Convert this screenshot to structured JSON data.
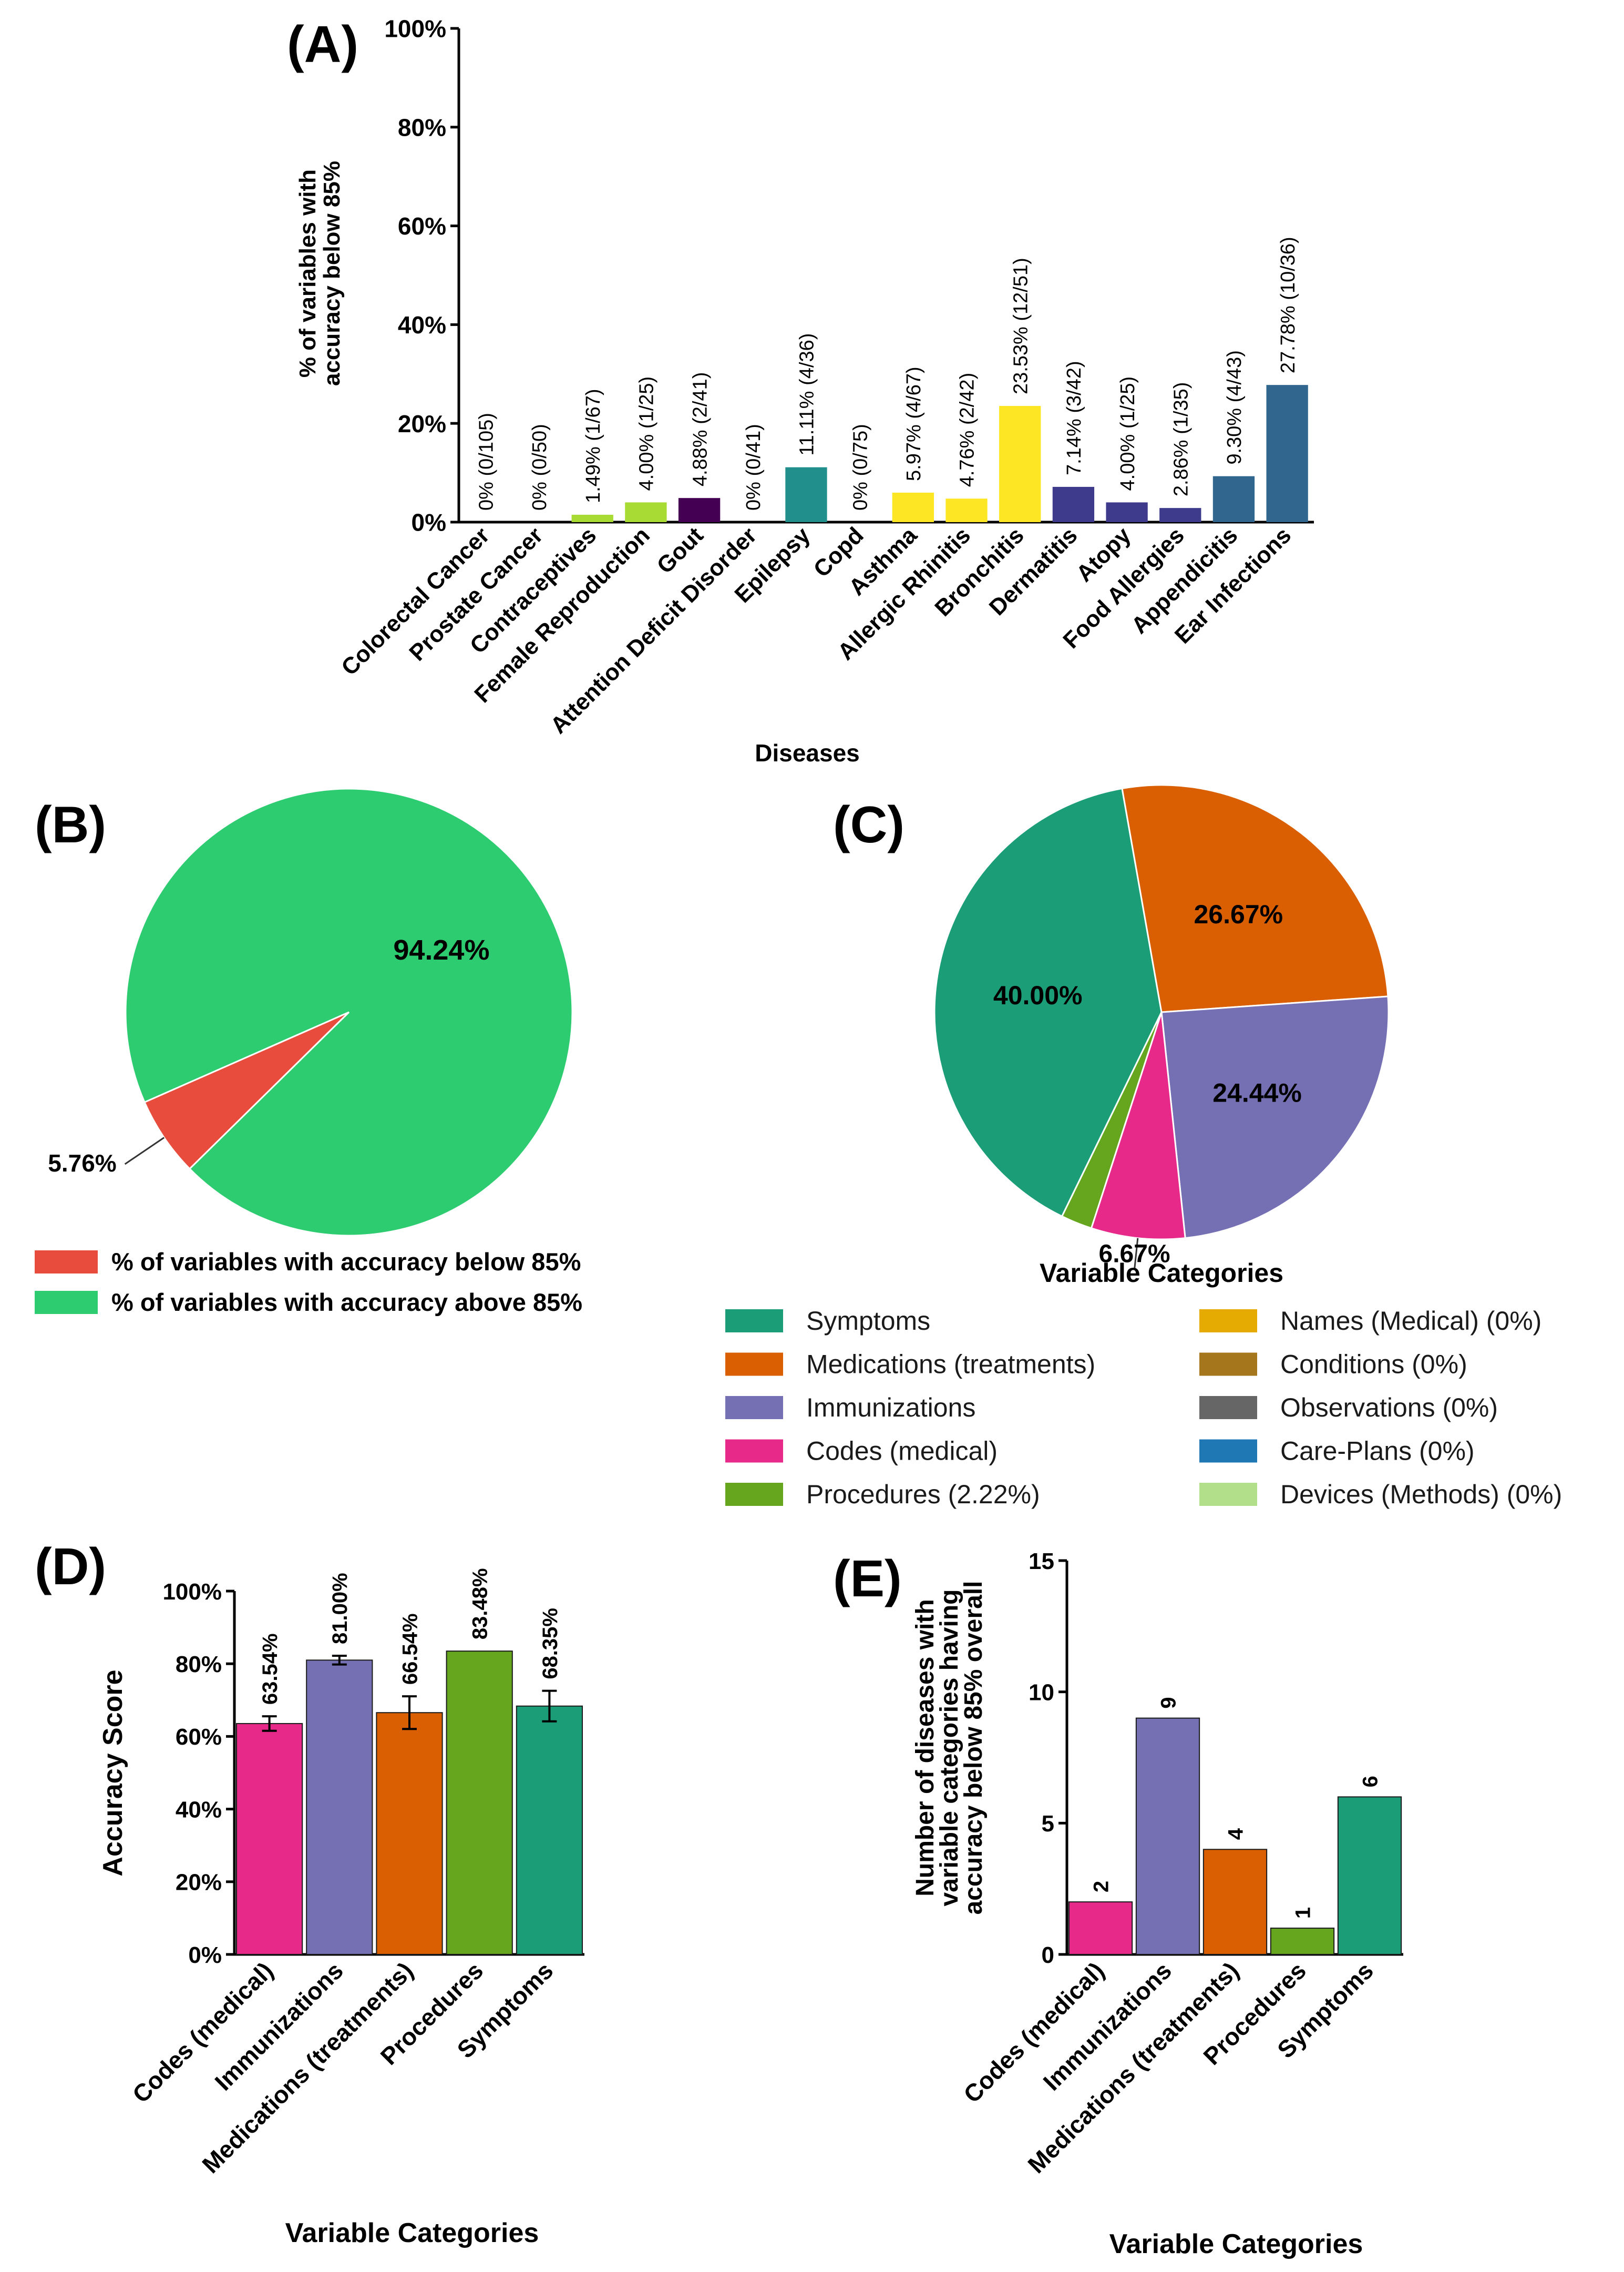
{
  "chart_data": [
    {
      "panel": "(A)",
      "type": "bar",
      "xlabel": "Diseases",
      "ylabel_lines": [
        "% of variables with",
        "accuracy below 85%"
      ],
      "ylim": [
        0,
        100
      ],
      "yticks": [
        "0%",
        "20%",
        "40%",
        "60%",
        "80%",
        "100%"
      ],
      "categories": [
        "Colorectal Cancer",
        "Prostate Cancer",
        "Contraceptives",
        "Female Reproduction",
        "Gout",
        "Attention Deficit Disorder",
        "Epilepsy",
        "Copd",
        "Asthma",
        "Allergic Rhinitis",
        "Bronchitis",
        "Dermatitis",
        "Atopy",
        "Food Allergies",
        "Appendicitis",
        "Ear Infections"
      ],
      "values": [
        0,
        0,
        1.49,
        4.0,
        4.88,
        0,
        11.11,
        0,
        5.97,
        4.76,
        23.53,
        7.14,
        4.0,
        2.86,
        9.3,
        27.78
      ],
      "labels": [
        "0% (0/105)",
        "0% (0/50)",
        "1.49% (1/67)",
        "4.00% (1/25)",
        "4.88% (2/41)",
        "0% (0/41)",
        "11.11% (4/36)",
        "0% (0/75)",
        "5.97% (4/67)",
        "4.76% (2/42)",
        "23.53% (12/51)",
        "7.14% (3/42)",
        "4.00% (1/25)",
        "2.86% (1/35)",
        "9.30% (4/43)",
        "27.78% (10/36)"
      ],
      "colors": [
        "#a8db34",
        "#a8db34",
        "#a8db34",
        "#a8db34",
        "#440154",
        "#21908c",
        "#21908c",
        "#fde725",
        "#fde725",
        "#fde725",
        "#fde725",
        "#3f3b8c",
        "#3f3b8c",
        "#3f3b8c",
        "#31668e",
        "#31668e"
      ]
    },
    {
      "panel": "(B)",
      "type": "pie",
      "slices": [
        {
          "label": "% of variables with accuracy below 85%",
          "value": 5.76,
          "text": "5.76%",
          "color": "#e74c3c"
        },
        {
          "label": "% of variables with accuracy above 85%",
          "value": 94.24,
          "text": "94.24%",
          "color": "#2ecc71"
        }
      ]
    },
    {
      "panel": "(C)",
      "type": "pie",
      "title": "Variable Categories",
      "slices": [
        {
          "label": "Symptoms",
          "value": 40.0,
          "text": "40.00%",
          "color": "#1b9e77"
        },
        {
          "label": "Medications (treatments)",
          "value": 26.67,
          "text": "26.67%",
          "color": "#d95f02"
        },
        {
          "label": "Immunizations",
          "value": 24.44,
          "text": "24.44%",
          "color": "#7570b3"
        },
        {
          "label": "Codes (medical)",
          "value": 6.67,
          "text": "6.67%",
          "color": "#e7298a"
        },
        {
          "label": "Procedures",
          "value": 2.22,
          "text": "",
          "color": "#66a61e"
        }
      ],
      "legend": [
        {
          "label": "Symptoms",
          "color": "#1b9e77"
        },
        {
          "label": "Medications (treatments)",
          "color": "#d95f02"
        },
        {
          "label": "Immunizations",
          "color": "#7570b3"
        },
        {
          "label": "Codes (medical)",
          "color": "#e7298a"
        },
        {
          "label": "Procedures (2.22%)",
          "color": "#66a61e"
        },
        {
          "label": "Names (Medical) (0%)",
          "color": "#e6ab02"
        },
        {
          "label": "Conditions (0%)",
          "color": "#a6761d"
        },
        {
          "label": "Observations (0%)",
          "color": "#666666"
        },
        {
          "label": "Care-Plans (0%)",
          "color": "#1f78b4"
        },
        {
          "label": "Devices (Methods) (0%)",
          "color": "#b2df8a"
        }
      ]
    },
    {
      "panel": "(D)",
      "type": "bar",
      "xlabel": "Variable Categories",
      "ylabel": "Accuracy Score",
      "ylim": [
        0,
        100
      ],
      "yticks": [
        "0%",
        "20%",
        "40%",
        "60%",
        "80%",
        "100%"
      ],
      "categories": [
        "Codes (medical)",
        "Immunizations",
        "Medications (treatments)",
        "Procedures",
        "Symptoms"
      ],
      "values": [
        63.54,
        81.0,
        66.54,
        83.48,
        68.35
      ],
      "errors": [
        2.0,
        1.2,
        4.5,
        0,
        4.2
      ],
      "labels": [
        "63.54%",
        "81.00%",
        "66.54%",
        "83.48%",
        "68.35%"
      ],
      "colors": [
        "#e7298a",
        "#7570b3",
        "#d95f02",
        "#66a61e",
        "#1b9e77"
      ]
    },
    {
      "panel": "(E)",
      "type": "bar",
      "xlabel": "Variable Categories",
      "ylabel_lines": [
        "Number of diseases with",
        "variable categories having",
        "accuracy below 85% overall"
      ],
      "ylim": [
        0,
        15
      ],
      "yticks": [
        "0",
        "5",
        "10",
        "15"
      ],
      "categories": [
        "Codes (medical)",
        "Immunizations",
        "Medications (treatments)",
        "Procedures",
        "Symptoms"
      ],
      "values": [
        2,
        9,
        4,
        1,
        6
      ],
      "labels": [
        "2",
        "9",
        "4",
        "1",
        "6"
      ],
      "colors": [
        "#e7298a",
        "#7570b3",
        "#d95f02",
        "#66a61e",
        "#1b9e77"
      ]
    }
  ]
}
